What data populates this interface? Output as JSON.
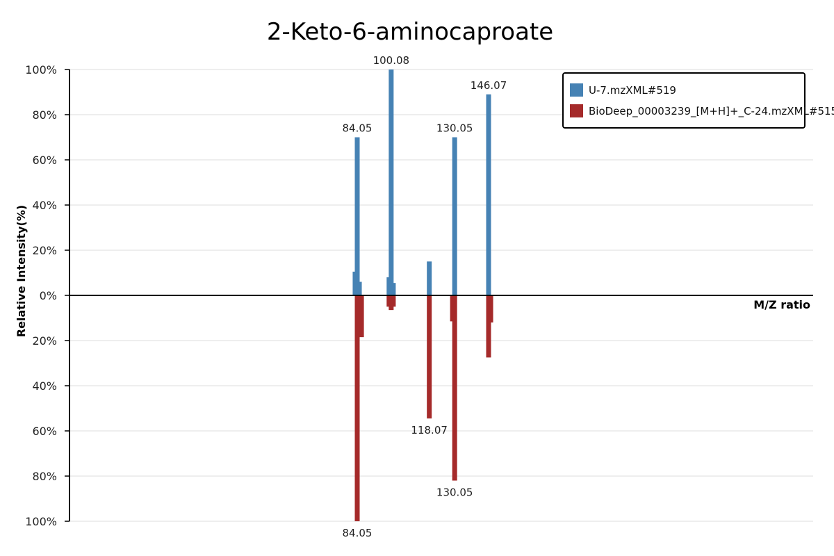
{
  "chart_data": {
    "type": "bar",
    "title": "2-Keto-6-aminocaproate",
    "xlabel": "M/Z ratio",
    "ylabel": "Relative Intensity(%)",
    "ylim": [
      -100,
      100
    ],
    "yticks": [
      "100%",
      "80%",
      "60%",
      "40%",
      "20%",
      "0%",
      "20%",
      "40%",
      "60%",
      "80%",
      "100%"
    ],
    "legend_position": "top-right",
    "grid": true,
    "series": [
      {
        "name": "U-7.mzXML#519",
        "color": "#4682b4",
        "direction": "up",
        "peaks": [
          {
            "mz": 83.05,
            "intensity": 10.5
          },
          {
            "mz": 84.05,
            "intensity": 70,
            "label": "84.05"
          },
          {
            "mz": 85.05,
            "intensity": 6
          },
          {
            "mz": 99.08,
            "intensity": 8
          },
          {
            "mz": 100.08,
            "intensity": 100,
            "label": "100.08"
          },
          {
            "mz": 101.08,
            "intensity": 5.5
          },
          {
            "mz": 118.07,
            "intensity": 15
          },
          {
            "mz": 130.05,
            "intensity": 70,
            "label": "130.05"
          },
          {
            "mz": 146.07,
            "intensity": 89,
            "label": "146.07"
          }
        ]
      },
      {
        "name": "BioDeep_00003239_[M+H]+_C-24.mzXML#515",
        "color": "#a52a2a",
        "direction": "down",
        "peaks": [
          {
            "mz": 84.05,
            "intensity": 100,
            "label": "84.05"
          },
          {
            "mz": 85.05,
            "intensity": 6
          },
          {
            "mz": 86.05,
            "intensity": 18.5
          },
          {
            "mz": 99.08,
            "intensity": 5
          },
          {
            "mz": 100.08,
            "intensity": 6.5
          },
          {
            "mz": 101.08,
            "intensity": 5
          },
          {
            "mz": 118.07,
            "intensity": 54.5,
            "label": "118.07"
          },
          {
            "mz": 129.05,
            "intensity": 11.5
          },
          {
            "mz": 130.05,
            "intensity": 82,
            "label": "130.05"
          },
          {
            "mz": 146.07,
            "intensity": 27.5
          },
          {
            "mz": 147.07,
            "intensity": 12
          }
        ]
      }
    ]
  }
}
